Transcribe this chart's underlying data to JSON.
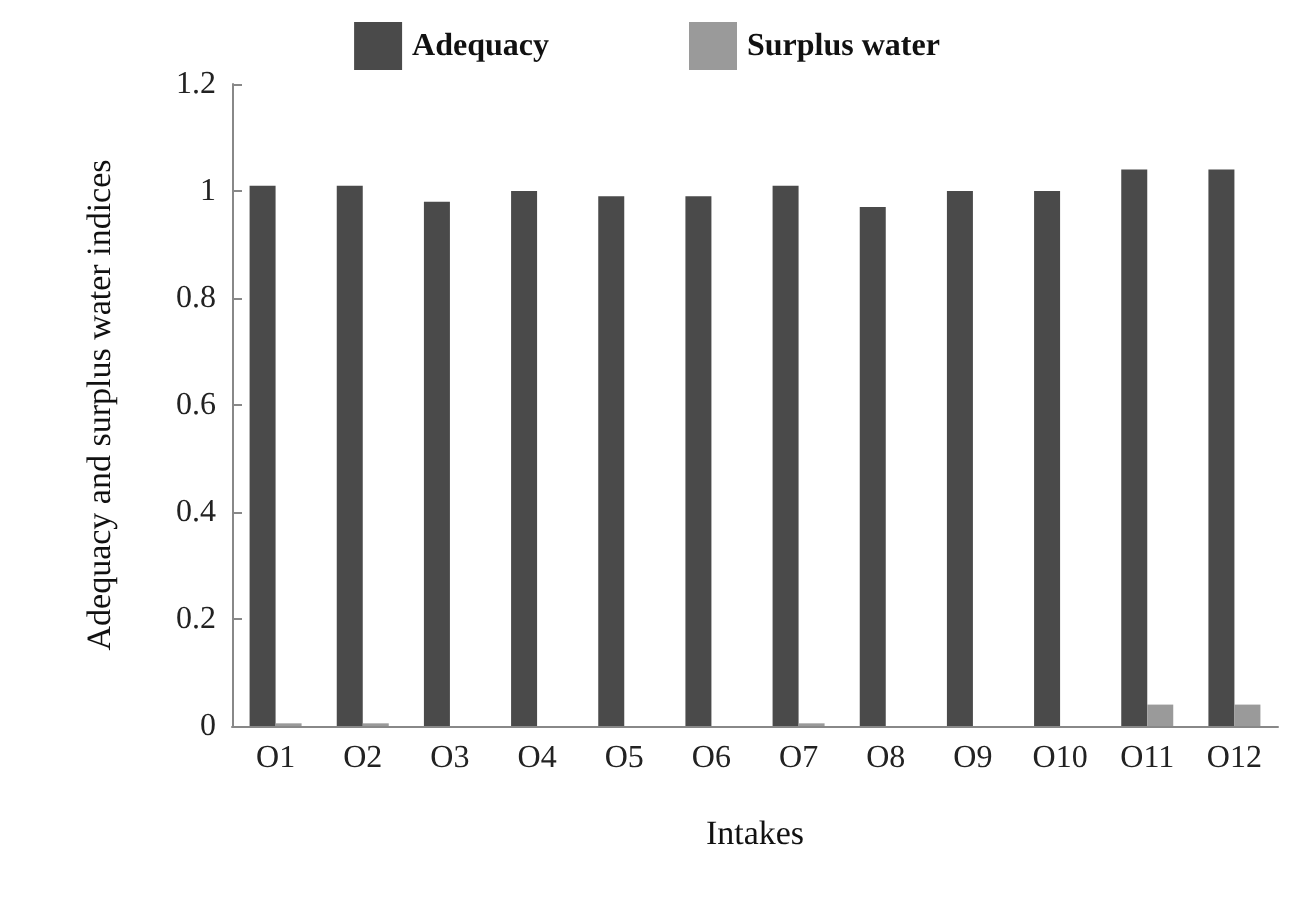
{
  "chart_data": {
    "type": "bar",
    "xlabel": "Intakes",
    "ylabel": "Adequacy and surplus water indices",
    "categories": [
      "O1",
      "O2",
      "O3",
      "O4",
      "O5",
      "O6",
      "O7",
      "O8",
      "O9",
      "O10",
      "O11",
      "O12"
    ],
    "series": [
      {
        "name": "Adequacy",
        "color": "#4a4a4a",
        "values": [
          1.01,
          1.01,
          0.98,
          1.0,
          0.99,
          0.99,
          1.01,
          0.97,
          1.0,
          1.0,
          1.04,
          1.04
        ]
      },
      {
        "name": "Surplus water",
        "color": "#9a9a9a",
        "values": [
          0.005,
          0.005,
          0,
          0,
          0,
          0,
          0.005,
          0,
          0,
          0,
          0.04,
          0.04
        ]
      }
    ],
    "ylim": [
      0,
      1.2
    ],
    "yticks": [
      0,
      0.2,
      0.4,
      0.6,
      0.8,
      1,
      1.2
    ],
    "grid": false,
    "legend": "top"
  }
}
